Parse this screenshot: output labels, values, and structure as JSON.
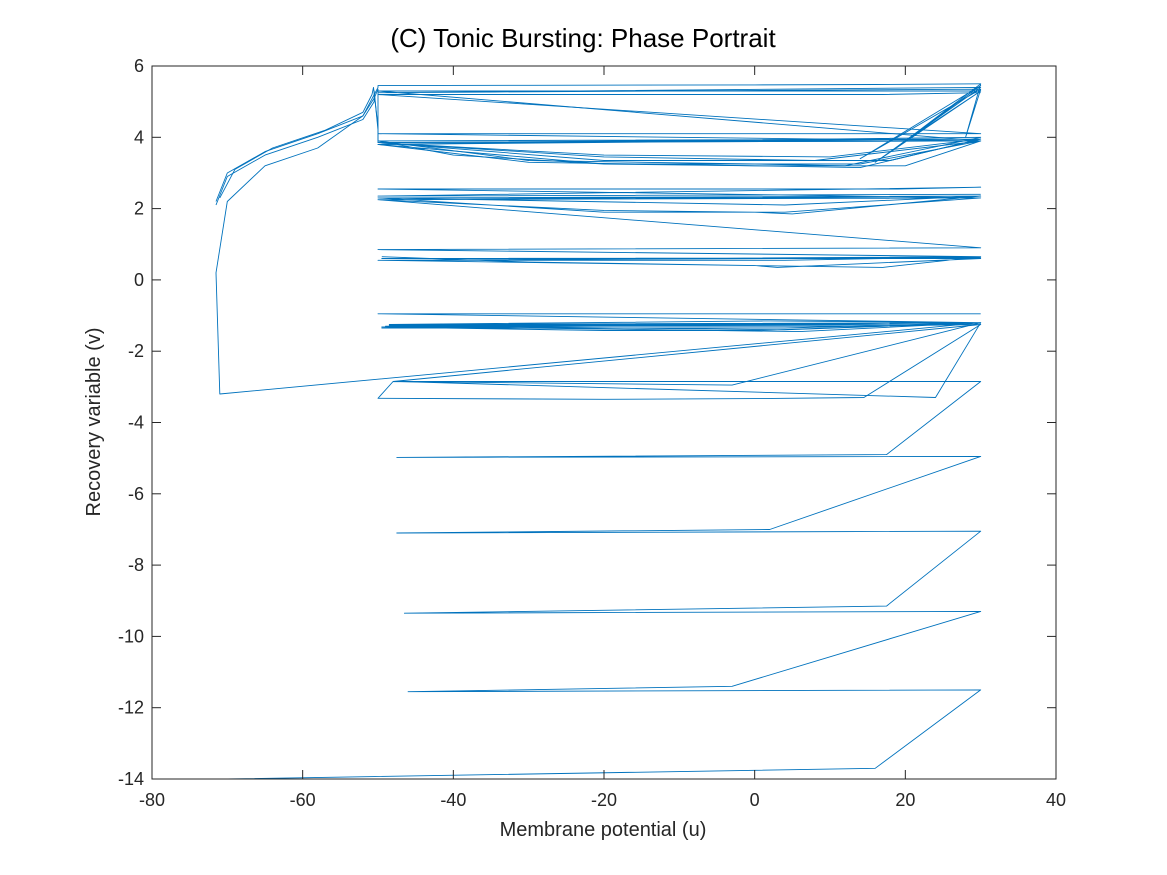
{
  "chart_data": {
    "type": "line",
    "title": "(C) Tonic Bursting: Phase Portrait",
    "xlabel": "Membrane potential (u)",
    "ylabel": "Recovery variable (v)",
    "xlim": [
      -80,
      40
    ],
    "ylim": [
      -14,
      6
    ],
    "xticks": [
      -80,
      -60,
      -40,
      -20,
      0,
      20,
      40
    ],
    "xtick_labels": [
      "-80",
      "-60",
      "-40",
      "-20",
      "0",
      "20",
      "40"
    ],
    "yticks": [
      -14,
      -12,
      -10,
      -8,
      -6,
      -4,
      -2,
      0,
      2,
      4,
      6
    ],
    "ytick_labels": [
      "-14",
      "-12",
      "-10",
      "-8",
      "-6",
      "-4",
      "-2",
      "0",
      "2",
      "4",
      "6"
    ],
    "grid": false,
    "line_color": "#0072BD",
    "series": [
      {
        "x": [
          -70,
          16,
          30,
          -46,
          -3,
          30,
          -46.5,
          17.5,
          30,
          -47.5,
          2,
          30,
          -47.5,
          17.5,
          30,
          -47,
          24,
          30,
          -71,
          -71.5,
          -70,
          -65,
          -58,
          -52,
          -50,
          -50,
          -50,
          -30,
          0,
          16,
          30
        ],
        "y": [
          -14,
          -13.7,
          -11.5,
          -11.55,
          -11.4,
          -9.3,
          -9.35,
          -9.15,
          -7.05,
          -7.1,
          -7.0,
          -4.95,
          -4.98,
          -4.9,
          -2.85,
          -2.85,
          -3.3,
          -1.2,
          -3.2,
          0.2,
          2.2,
          3.2,
          3.7,
          4.6,
          5.4,
          5.45,
          5.45,
          5.46,
          5.47,
          5.48,
          5.5
        ]
      },
      {
        "x": [
          -48,
          -50,
          -20,
          0,
          14.5,
          30,
          -48,
          -3,
          30,
          -48.5,
          2,
          30,
          -48.5,
          4,
          30,
          -49,
          14,
          30,
          -49,
          6,
          30,
          -49.5,
          -20,
          0,
          3,
          30,
          -49.5,
          4,
          30,
          -50,
          15,
          30
        ],
        "y": [
          -2.85,
          -3.32,
          -3.35,
          -3.33,
          -3.3,
          -1.25,
          -2.85,
          -2.95,
          -1.2,
          -1.25,
          -1.15,
          -1.2,
          -1.28,
          -1.4,
          -1.2,
          -1.3,
          -1.3,
          -1.25,
          -1.3,
          -1.45,
          -1.2,
          -1.32,
          -1.42,
          -1.42,
          -1.4,
          -1.2,
          -1.35,
          -1.35,
          -1.2,
          -0.95,
          -0.95,
          -0.95
        ]
      },
      {
        "x": [
          -49.5,
          -30,
          0,
          3,
          30,
          -49.5,
          30,
          -50,
          4,
          30,
          -50,
          17,
          30,
          -50,
          30,
          -50,
          -20,
          0,
          5,
          30,
          -49.5,
          4,
          30,
          -50,
          30,
          -50,
          -20,
          4,
          30,
          -50,
          19,
          30,
          -50,
          30
        ],
        "y": [
          0.65,
          0.5,
          0.4,
          0.35,
          0.6,
          0.6,
          0.62,
          0.55,
          0.55,
          0.65,
          0.55,
          0.35,
          0.65,
          0.85,
          0.9,
          2.25,
          1.95,
          1.9,
          1.85,
          2.35,
          2.3,
          2.1,
          2.35,
          2.25,
          2.3,
          2.3,
          1.9,
          1.9,
          2.3,
          2.55,
          2.55,
          2.6,
          2.35,
          2.4
        ]
      },
      {
        "x": [
          -50,
          -40,
          -20,
          0,
          20,
          30,
          -50,
          -20,
          8,
          30,
          -50,
          -20,
          10,
          30,
          -50,
          -20,
          14,
          30,
          -50,
          -20,
          18,
          30,
          -50,
          30,
          -50,
          30,
          -50,
          30,
          -50,
          17,
          30
        ],
        "y": [
          3.9,
          3.5,
          3.25,
          3.2,
          3.2,
          3.9,
          3.85,
          3.45,
          3.35,
          3.9,
          3.85,
          3.5,
          3.45,
          3.95,
          3.8,
          3.25,
          3.25,
          3.9,
          3.85,
          3.35,
          3.35,
          3.95,
          3.9,
          3.95,
          3.85,
          3.9,
          4.1,
          4.1,
          5.2,
          5.2,
          5.25
        ]
      },
      {
        "x": [
          -71.5,
          -70,
          -65,
          -58,
          -52,
          -50.5,
          -50,
          -50,
          -50,
          30,
          -50,
          30,
          16,
          30,
          -50,
          30,
          14,
          30,
          18,
          30,
          20,
          30,
          28,
          30
        ],
        "y": [
          2.2,
          3.0,
          3.6,
          4.1,
          4.6,
          5.1,
          5.35,
          4.0,
          3.85,
          3.9,
          5.3,
          5.3,
          3.3,
          5.4,
          5.25,
          5.35,
          3.4,
          5.45,
          3.6,
          5.3,
          3.9,
          5.5,
          4.0,
          5.35
        ]
      },
      {
        "x": [
          -71.5,
          -70,
          -65,
          -58,
          -52,
          -50.5,
          -50.5,
          -50,
          -50
        ],
        "y": [
          2.1,
          2.9,
          3.5,
          4.0,
          4.5,
          5.0,
          5.3,
          4.2,
          3.9
        ]
      },
      {
        "x": [
          -71,
          -69,
          -64,
          -57,
          -52,
          -50.8,
          -50.6,
          -50,
          -50
        ],
        "y": [
          2.3,
          3.1,
          3.7,
          4.2,
          4.7,
          5.2,
          5.4,
          4.3,
          3.95
        ]
      },
      {
        "x": [
          -50,
          -30,
          0,
          12,
          30,
          -50,
          -30,
          0,
          14,
          30
        ],
        "y": [
          3.9,
          3.35,
          3.25,
          3.2,
          4.0,
          3.8,
          3.3,
          3.2,
          3.15,
          3.95
        ]
      }
    ]
  }
}
